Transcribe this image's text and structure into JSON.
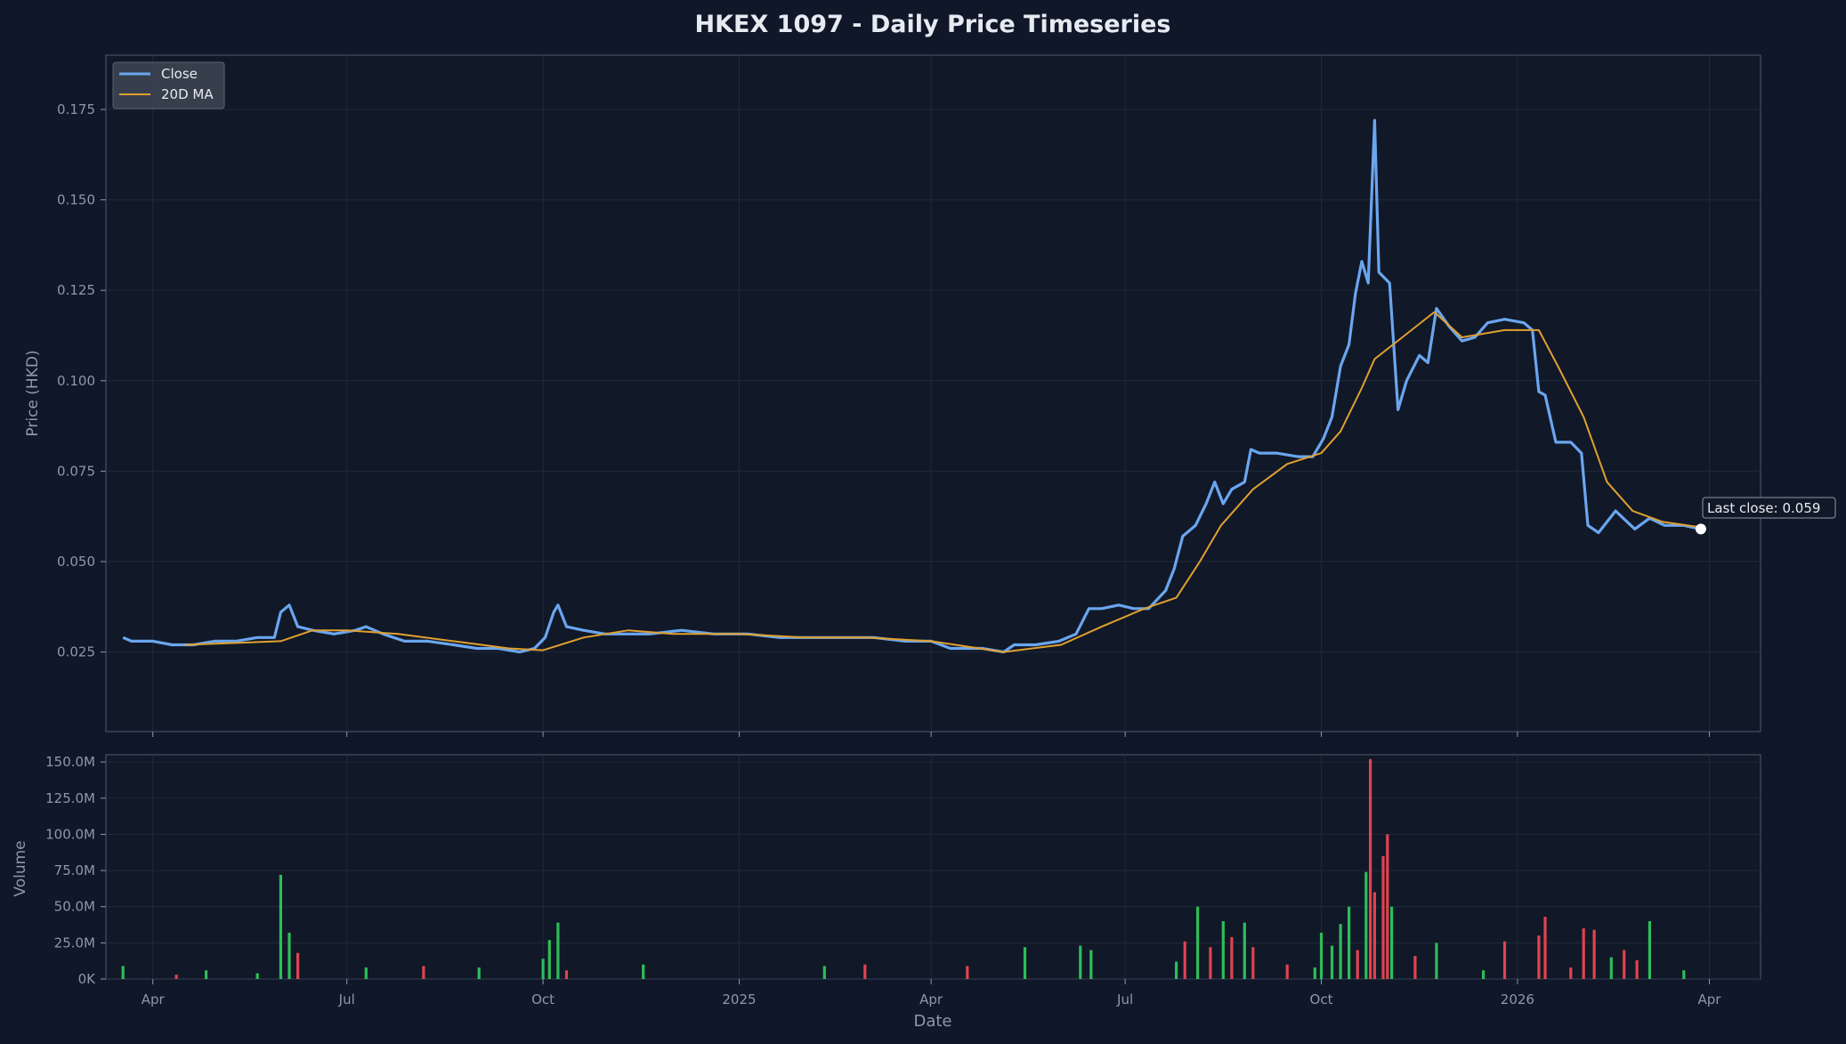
{
  "chart_data": [
    {
      "type": "line",
      "title": "HKEX 1097 - Daily Price Timeseries",
      "ylabel": "Price (HKD)",
      "ylim": [
        0.003,
        0.19
      ],
      "yticks": [
        0.025,
        0.05,
        0.075,
        0.1,
        0.125,
        0.15,
        0.175
      ],
      "ytick_labels": [
        "0.025",
        "0.050",
        "0.075",
        "0.100",
        "0.125",
        "0.150",
        "0.175"
      ],
      "xlim": [
        "2024-03-10",
        "2026-04-25"
      ],
      "x_ticks": [
        "2024-04-01",
        "2024-07-01",
        "2024-10-01",
        "2025-01-01",
        "2025-04-01",
        "2025-07-01",
        "2025-10-01",
        "2026-01-01",
        "2026-04-01"
      ],
      "x_tick_labels": [
        "Apr",
        "Jul",
        "Oct",
        "2025",
        "Apr",
        "Jul",
        "Oct",
        "2026",
        "Apr"
      ],
      "grid": true,
      "legend_position": "top-left",
      "series": [
        {
          "name": "Close",
          "color": "#6aa6ef",
          "points": [
            [
              "2024-03-18",
              0.029
            ],
            [
              "2024-03-22",
              0.028
            ],
            [
              "2024-04-01",
              0.028
            ],
            [
              "2024-04-10",
              0.027
            ],
            [
              "2024-04-20",
              0.027
            ],
            [
              "2024-04-30",
              0.028
            ],
            [
              "2024-05-10",
              0.028
            ],
            [
              "2024-05-20",
              0.029
            ],
            [
              "2024-05-28",
              0.029
            ],
            [
              "2024-05-31",
              0.036
            ],
            [
              "2024-06-04",
              0.038
            ],
            [
              "2024-06-08",
              0.032
            ],
            [
              "2024-06-15",
              0.031
            ],
            [
              "2024-06-25",
              0.03
            ],
            [
              "2024-07-05",
              0.031
            ],
            [
              "2024-07-10",
              0.032
            ],
            [
              "2024-07-18",
              0.03
            ],
            [
              "2024-07-28",
              0.028
            ],
            [
              "2024-08-08",
              0.028
            ],
            [
              "2024-08-20",
              0.027
            ],
            [
              "2024-08-31",
              0.026
            ],
            [
              "2024-09-10",
              0.026
            ],
            [
              "2024-09-20",
              0.025
            ],
            [
              "2024-09-27",
              0.026
            ],
            [
              "2024-10-02",
              0.029
            ],
            [
              "2024-10-06",
              0.036
            ],
            [
              "2024-10-08",
              0.038
            ],
            [
              "2024-10-12",
              0.032
            ],
            [
              "2024-10-20",
              0.031
            ],
            [
              "2024-10-30",
              0.03
            ],
            [
              "2024-11-10",
              0.03
            ],
            [
              "2024-11-20",
              0.03
            ],
            [
              "2024-12-05",
              0.031
            ],
            [
              "2024-12-20",
              0.03
            ],
            [
              "2025-01-05",
              0.03
            ],
            [
              "2025-01-20",
              0.029
            ],
            [
              "2025-02-05",
              0.029
            ],
            [
              "2025-02-20",
              0.029
            ],
            [
              "2025-03-05",
              0.029
            ],
            [
              "2025-03-20",
              0.028
            ],
            [
              "2025-04-01",
              0.028
            ],
            [
              "2025-04-10",
              0.026
            ],
            [
              "2025-04-25",
              0.026
            ],
            [
              "2025-05-05",
              0.025
            ],
            [
              "2025-05-10",
              0.027
            ],
            [
              "2025-05-20",
              0.027
            ],
            [
              "2025-05-31",
              0.028
            ],
            [
              "2025-06-08",
              0.03
            ],
            [
              "2025-06-14",
              0.037
            ],
            [
              "2025-06-20",
              0.037
            ],
            [
              "2025-06-28",
              0.038
            ],
            [
              "2025-07-05",
              0.037
            ],
            [
              "2025-07-12",
              0.037
            ],
            [
              "2025-07-20",
              0.042
            ],
            [
              "2025-07-24",
              0.048
            ],
            [
              "2025-07-28",
              0.057
            ],
            [
              "2025-08-03",
              0.06
            ],
            [
              "2025-08-08",
              0.066
            ],
            [
              "2025-08-12",
              0.072
            ],
            [
              "2025-08-16",
              0.066
            ],
            [
              "2025-08-20",
              0.07
            ],
            [
              "2025-08-26",
              0.072
            ],
            [
              "2025-08-29",
              0.081
            ],
            [
              "2025-09-02",
              0.08
            ],
            [
              "2025-09-10",
              0.08
            ],
            [
              "2025-09-20",
              0.079
            ],
            [
              "2025-09-27",
              0.079
            ],
            [
              "2025-10-02",
              0.084
            ],
            [
              "2025-10-06",
              0.09
            ],
            [
              "2025-10-10",
              0.104
            ],
            [
              "2025-10-14",
              0.11
            ],
            [
              "2025-10-17",
              0.124
            ],
            [
              "2025-10-20",
              0.133
            ],
            [
              "2025-10-23",
              0.127
            ],
            [
              "2025-10-26",
              0.172
            ],
            [
              "2025-10-28",
              0.13
            ],
            [
              "2025-11-02",
              0.127
            ],
            [
              "2025-11-06",
              0.092
            ],
            [
              "2025-11-10",
              0.1
            ],
            [
              "2025-11-16",
              0.107
            ],
            [
              "2025-11-20",
              0.105
            ],
            [
              "2025-11-24",
              0.12
            ],
            [
              "2025-11-30",
              0.115
            ],
            [
              "2025-12-06",
              0.111
            ],
            [
              "2025-12-12",
              0.112
            ],
            [
              "2025-12-18",
              0.116
            ],
            [
              "2025-12-26",
              0.117
            ],
            [
              "2026-01-04",
              0.116
            ],
            [
              "2026-01-08",
              0.114
            ],
            [
              "2026-01-11",
              0.097
            ],
            [
              "2026-01-14",
              0.096
            ],
            [
              "2026-01-19",
              0.083
            ],
            [
              "2026-01-26",
              0.083
            ],
            [
              "2026-01-31",
              0.08
            ],
            [
              "2026-02-03",
              0.06
            ],
            [
              "2026-02-08",
              0.058
            ],
            [
              "2026-02-16",
              0.064
            ],
            [
              "2026-02-25",
              0.059
            ],
            [
              "2026-03-04",
              0.062
            ],
            [
              "2026-03-11",
              0.06
            ],
            [
              "2026-03-20",
              0.06
            ],
            [
              "2026-03-28",
              0.059
            ]
          ]
        },
        {
          "name": "20D MA",
          "color": "#e0a030",
          "points": [
            [
              "2024-04-16",
              0.027
            ],
            [
              "2024-05-10",
              0.0275
            ],
            [
              "2024-05-31",
              0.028
            ],
            [
              "2024-06-15",
              0.031
            ],
            [
              "2024-07-01",
              0.031
            ],
            [
              "2024-07-25",
              0.03
            ],
            [
              "2024-08-20",
              0.028
            ],
            [
              "2024-09-15",
              0.026
            ],
            [
              "2024-10-01",
              0.0255
            ],
            [
              "2024-10-20",
              0.029
            ],
            [
              "2024-11-10",
              0.031
            ],
            [
              "2024-12-01",
              0.03
            ],
            [
              "2025-01-01",
              0.03
            ],
            [
              "2025-02-01",
              0.029
            ],
            [
              "2025-03-01",
              0.029
            ],
            [
              "2025-04-01",
              0.028
            ],
            [
              "2025-05-05",
              0.025
            ],
            [
              "2025-06-01",
              0.027
            ],
            [
              "2025-06-20",
              0.032
            ],
            [
              "2025-07-10",
              0.037
            ],
            [
              "2025-07-25",
              0.04
            ],
            [
              "2025-08-05",
              0.05
            ],
            [
              "2025-08-15",
              0.06
            ],
            [
              "2025-08-30",
              0.07
            ],
            [
              "2025-09-15",
              0.077
            ],
            [
              "2025-10-01",
              0.08
            ],
            [
              "2025-10-10",
              0.086
            ],
            [
              "2025-10-20",
              0.098
            ],
            [
              "2025-10-26",
              0.106
            ],
            [
              "2025-11-08",
              0.112
            ],
            [
              "2025-11-23",
              0.119
            ],
            [
              "2025-12-06",
              0.112
            ],
            [
              "2025-12-26",
              0.114
            ],
            [
              "2026-01-11",
              0.114
            ],
            [
              "2026-01-20",
              0.104
            ],
            [
              "2026-02-01",
              0.09
            ],
            [
              "2026-02-12",
              0.072
            ],
            [
              "2026-02-24",
              0.064
            ],
            [
              "2026-03-10",
              0.061
            ],
            [
              "2026-03-28",
              0.0595
            ]
          ]
        }
      ],
      "annotation": {
        "text": "Last close: 0.059",
        "date": "2026-03-28",
        "value": 0.059,
        "marker_color": "#ffffff"
      }
    },
    {
      "type": "bar",
      "xlabel": "Date",
      "ylabel": "Volume",
      "ylim": [
        0,
        155000000
      ],
      "yticks": [
        0,
        25000000,
        50000000,
        75000000,
        100000000,
        125000000,
        150000000
      ],
      "ytick_labels": [
        "0K",
        "25.0M",
        "50.0M",
        "75.0M",
        "100.0M",
        "125.0M",
        "150.0M"
      ],
      "up_color": "#2ebd5a",
      "down_color": "#e0434f",
      "bars": [
        [
          "2024-03-18",
          9000000,
          "up"
        ],
        [
          "2024-04-12",
          3000000,
          "down"
        ],
        [
          "2024-04-26",
          6000000,
          "up"
        ],
        [
          "2024-05-20",
          4000000,
          "up"
        ],
        [
          "2024-05-31",
          72000000,
          "up"
        ],
        [
          "2024-06-04",
          32000000,
          "up"
        ],
        [
          "2024-06-08",
          18000000,
          "down"
        ],
        [
          "2024-07-10",
          8000000,
          "up"
        ],
        [
          "2024-08-06",
          9000000,
          "down"
        ],
        [
          "2024-09-01",
          8000000,
          "up"
        ],
        [
          "2024-10-01",
          14000000,
          "up"
        ],
        [
          "2024-10-04",
          27000000,
          "up"
        ],
        [
          "2024-10-08",
          39000000,
          "up"
        ],
        [
          "2024-10-12",
          6000000,
          "down"
        ],
        [
          "2024-11-17",
          10000000,
          "up"
        ],
        [
          "2025-02-10",
          9000000,
          "up"
        ],
        [
          "2025-03-01",
          10000000,
          "down"
        ],
        [
          "2025-04-18",
          9000000,
          "down"
        ],
        [
          "2025-05-15",
          22000000,
          "up"
        ],
        [
          "2025-06-10",
          23000000,
          "up"
        ],
        [
          "2025-06-15",
          20000000,
          "up"
        ],
        [
          "2025-07-25",
          12000000,
          "up"
        ],
        [
          "2025-07-29",
          26000000,
          "down"
        ],
        [
          "2025-08-04",
          50000000,
          "up"
        ],
        [
          "2025-08-10",
          22000000,
          "down"
        ],
        [
          "2025-08-16",
          40000000,
          "up"
        ],
        [
          "2025-08-20",
          29000000,
          "down"
        ],
        [
          "2025-08-26",
          39000000,
          "up"
        ],
        [
          "2025-08-30",
          22000000,
          "down"
        ],
        [
          "2025-09-15",
          10000000,
          "down"
        ],
        [
          "2025-09-28",
          8000000,
          "up"
        ],
        [
          "2025-10-01",
          32000000,
          "up"
        ],
        [
          "2025-10-06",
          23000000,
          "up"
        ],
        [
          "2025-10-10",
          38000000,
          "up"
        ],
        [
          "2025-10-14",
          50000000,
          "up"
        ],
        [
          "2025-10-18",
          20000000,
          "down"
        ],
        [
          "2025-10-22",
          74000000,
          "up"
        ],
        [
          "2025-10-24",
          152000000,
          "down"
        ],
        [
          "2025-10-26",
          60000000,
          "down"
        ],
        [
          "2025-10-30",
          85000000,
          "down"
        ],
        [
          "2025-11-01",
          100000000,
          "down"
        ],
        [
          "2025-11-03",
          50000000,
          "up"
        ],
        [
          "2025-11-14",
          16000000,
          "down"
        ],
        [
          "2025-11-24",
          25000000,
          "up"
        ],
        [
          "2025-12-16",
          6000000,
          "up"
        ],
        [
          "2025-12-26",
          26000000,
          "down"
        ],
        [
          "2026-01-11",
          30000000,
          "down"
        ],
        [
          "2026-01-14",
          43000000,
          "down"
        ],
        [
          "2026-01-26",
          8000000,
          "down"
        ],
        [
          "2026-02-01",
          35000000,
          "down"
        ],
        [
          "2026-02-06",
          34000000,
          "down"
        ],
        [
          "2026-02-14",
          15000000,
          "up"
        ],
        [
          "2026-02-20",
          20000000,
          "down"
        ],
        [
          "2026-02-26",
          13000000,
          "down"
        ],
        [
          "2026-03-04",
          40000000,
          "up"
        ],
        [
          "2026-03-20",
          6000000,
          "up"
        ]
      ]
    }
  ]
}
